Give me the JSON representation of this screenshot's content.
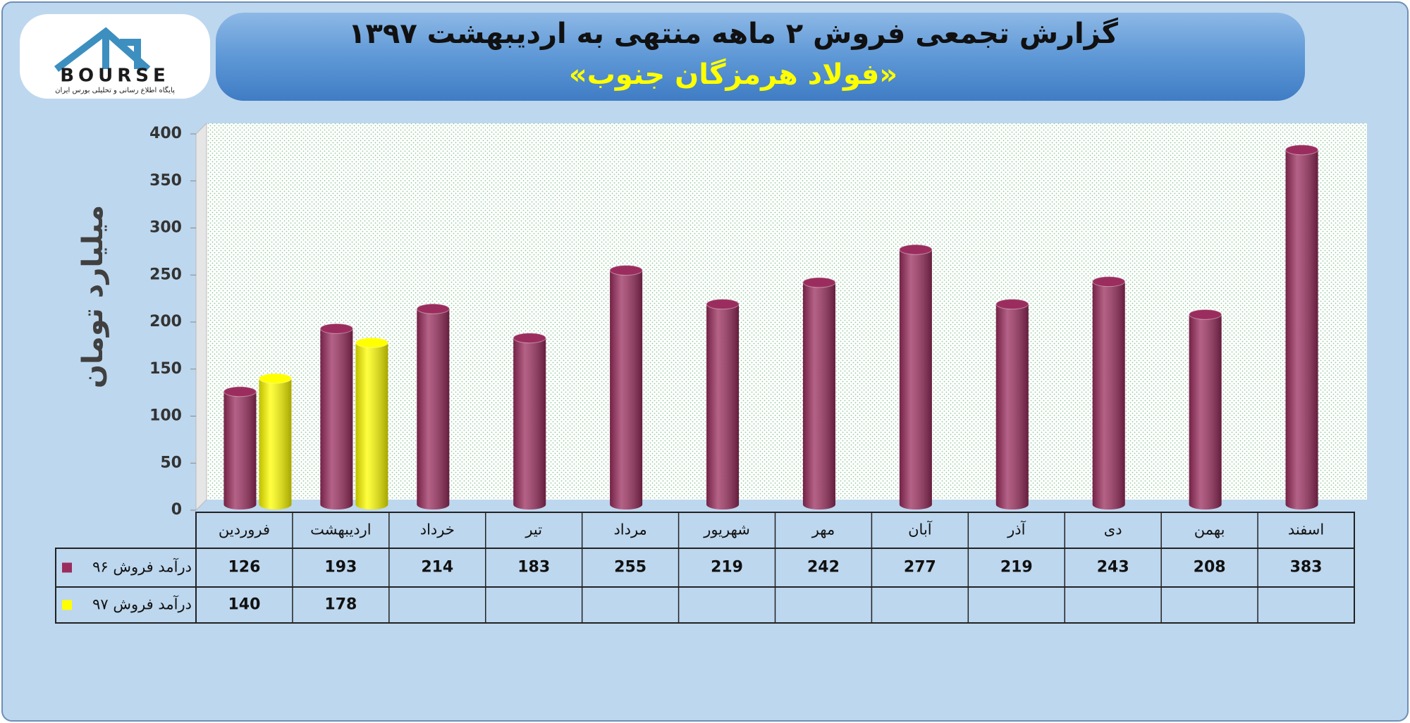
{
  "logo": {
    "text": "BOURSE",
    "tagline": "پایگاه اطلاع رسانی و تحلیلی بورس ایران"
  },
  "chart_data": {
    "type": "bar",
    "title": "گزارش تجمعی فروش ۲ ماهه منتهی به اردیبهشت ۱۳۹۷",
    "subtitle": "«فولاد هرمزگان جنوب»",
    "y_label": "میلیارد تومان",
    "categories": [
      "فروردین",
      "اردیبهشت",
      "خرداد",
      "تیر",
      "مرداد",
      "شهریور",
      "مهر",
      "آبان",
      "آذر",
      "دی",
      "بهمن",
      "اسفند"
    ],
    "series": [
      {
        "name": "درآمد فروش ۹۶",
        "color": "#9b2d5e",
        "values": [
          126,
          193,
          214,
          183,
          255,
          219,
          242,
          277,
          219,
          243,
          208,
          383
        ]
      },
      {
        "name": "درآمد فروش ۹۷",
        "color": "#ffff00",
        "values": [
          140,
          178,
          null,
          null,
          null,
          null,
          null,
          null,
          null,
          null,
          null,
          null
        ]
      }
    ],
    "ylim": [
      0,
      400
    ],
    "yticks": [
      0,
      50,
      100,
      150,
      200,
      250,
      300,
      350,
      400
    ]
  }
}
